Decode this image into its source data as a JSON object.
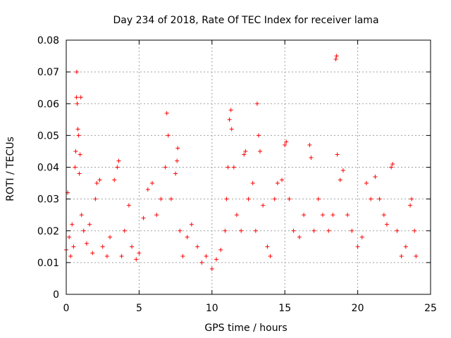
{
  "chart_data": {
    "type": "scatter",
    "title": "Day 234 of 2018, Rate Of TEC Index for receiver lama",
    "xlabel": "GPS time / hours",
    "ylabel": "ROTI / TECUs",
    "xlim": [
      0,
      25
    ],
    "ylim": [
      0,
      0.08
    ],
    "xticks": [
      0,
      5,
      10,
      15,
      20,
      25
    ],
    "yticks": [
      0,
      0.01,
      0.02,
      0.03,
      0.04,
      0.05,
      0.06,
      0.07,
      0.08
    ],
    "xtick_labels": [
      "0",
      "5",
      "10",
      "15",
      "20",
      "25"
    ],
    "ytick_labels": [
      "0",
      "0.01",
      "0.02",
      "0.03",
      "0.04",
      "0.05",
      "0.06",
      "0.07",
      "0.08"
    ],
    "grid": true,
    "marker": "+",
    "color": "#ff0000",
    "series": [
      {
        "name": "ROTI",
        "points": [
          [
            0.0,
            0.014
          ],
          [
            0.1,
            0.032
          ],
          [
            0.2,
            0.018
          ],
          [
            0.3,
            0.012
          ],
          [
            0.4,
            0.022
          ],
          [
            0.5,
            0.015
          ],
          [
            0.6,
            0.04
          ],
          [
            0.65,
            0.045
          ],
          [
            0.7,
            0.062
          ],
          [
            0.72,
            0.07
          ],
          [
            0.75,
            0.06
          ],
          [
            0.8,
            0.052
          ],
          [
            0.85,
            0.05
          ],
          [
            0.9,
            0.038
          ],
          [
            0.95,
            0.044
          ],
          [
            1.0,
            0.062
          ],
          [
            1.05,
            0.025
          ],
          [
            1.2,
            0.02
          ],
          [
            1.4,
            0.016
          ],
          [
            1.6,
            0.022
          ],
          [
            1.8,
            0.013
          ],
          [
            2.0,
            0.03
          ],
          [
            2.1,
            0.035
          ],
          [
            2.3,
            0.036
          ],
          [
            2.5,
            0.015
          ],
          [
            2.8,
            0.012
          ],
          [
            3.0,
            0.018
          ],
          [
            3.3,
            0.036
          ],
          [
            3.5,
            0.04
          ],
          [
            3.6,
            0.042
          ],
          [
            3.8,
            0.012
          ],
          [
            4.0,
            0.02
          ],
          [
            4.3,
            0.028
          ],
          [
            4.5,
            0.015
          ],
          [
            4.8,
            0.011
          ],
          [
            5.0,
            0.013
          ],
          [
            5.3,
            0.024
          ],
          [
            5.6,
            0.033
          ],
          [
            5.9,
            0.035
          ],
          [
            6.2,
            0.025
          ],
          [
            6.5,
            0.03
          ],
          [
            6.8,
            0.04
          ],
          [
            6.9,
            0.057
          ],
          [
            7.0,
            0.05
          ],
          [
            7.2,
            0.03
          ],
          [
            7.5,
            0.038
          ],
          [
            7.6,
            0.042
          ],
          [
            7.65,
            0.046
          ],
          [
            7.8,
            0.02
          ],
          [
            8.0,
            0.012
          ],
          [
            8.3,
            0.018
          ],
          [
            8.6,
            0.022
          ],
          [
            9.0,
            0.015
          ],
          [
            9.3,
            0.01
          ],
          [
            9.6,
            0.012
          ],
          [
            10.0,
            0.008
          ],
          [
            10.3,
            0.011
          ],
          [
            10.6,
            0.014
          ],
          [
            10.9,
            0.02
          ],
          [
            11.0,
            0.03
          ],
          [
            11.1,
            0.04
          ],
          [
            11.2,
            0.055
          ],
          [
            11.3,
            0.058
          ],
          [
            11.35,
            0.052
          ],
          [
            11.5,
            0.04
          ],
          [
            11.7,
            0.025
          ],
          [
            12.0,
            0.02
          ],
          [
            12.2,
            0.044
          ],
          [
            12.3,
            0.045
          ],
          [
            12.5,
            0.03
          ],
          [
            12.8,
            0.035
          ],
          [
            13.0,
            0.02
          ],
          [
            13.1,
            0.06
          ],
          [
            13.2,
            0.05
          ],
          [
            13.3,
            0.045
          ],
          [
            13.5,
            0.028
          ],
          [
            13.8,
            0.015
          ],
          [
            14.0,
            0.012
          ],
          [
            14.3,
            0.03
          ],
          [
            14.5,
            0.035
          ],
          [
            14.8,
            0.036
          ],
          [
            15.0,
            0.047
          ],
          [
            15.1,
            0.048
          ],
          [
            15.3,
            0.03
          ],
          [
            15.6,
            0.02
          ],
          [
            16.0,
            0.018
          ],
          [
            16.3,
            0.025
          ],
          [
            16.7,
            0.047
          ],
          [
            16.8,
            0.043
          ],
          [
            17.0,
            0.02
          ],
          [
            17.3,
            0.03
          ],
          [
            17.6,
            0.025
          ],
          [
            18.0,
            0.02
          ],
          [
            18.3,
            0.025
          ],
          [
            18.5,
            0.074
          ],
          [
            18.55,
            0.075
          ],
          [
            18.6,
            0.044
          ],
          [
            18.8,
            0.036
          ],
          [
            19.0,
            0.039
          ],
          [
            19.3,
            0.025
          ],
          [
            19.6,
            0.02
          ],
          [
            20.0,
            0.015
          ],
          [
            20.3,
            0.018
          ],
          [
            20.6,
            0.035
          ],
          [
            20.9,
            0.03
          ],
          [
            21.2,
            0.037
          ],
          [
            21.5,
            0.03
          ],
          [
            21.8,
            0.025
          ],
          [
            22.0,
            0.022
          ],
          [
            22.3,
            0.04
          ],
          [
            22.4,
            0.041
          ],
          [
            22.7,
            0.02
          ],
          [
            23.0,
            0.012
          ],
          [
            23.3,
            0.015
          ],
          [
            23.6,
            0.028
          ],
          [
            23.7,
            0.03
          ],
          [
            23.9,
            0.02
          ],
          [
            24.0,
            0.012
          ]
        ]
      }
    ]
  }
}
